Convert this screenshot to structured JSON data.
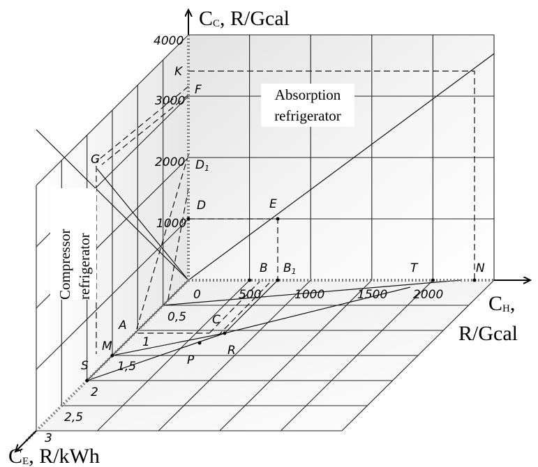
{
  "axes": {
    "cc_symbol": "C",
    "cc_sub": "C",
    "cc_unit": ", R/Gcal",
    "ch_symbol": "C",
    "ch_sub": "H",
    "ch_unit_line1": ",",
    "ch_unit_line2": "R/Gcal",
    "ce_symbol": "C",
    "ce_sub": "E",
    "ce_unit": ", R/kWh"
  },
  "ticks": {
    "cc": [
      "1000",
      "2000",
      "3000",
      "4000"
    ],
    "ch": [
      "500",
      "1000",
      "1500",
      "2000"
    ],
    "ce": [
      "0,5",
      "1",
      "1,5",
      "2",
      "2,5",
      "3"
    ],
    "origin": "0"
  },
  "points": {
    "K": "K",
    "F": "F",
    "D1": "D",
    "D1_sub": "1",
    "D": "D",
    "E": "E",
    "G": "G",
    "B": "B",
    "B1": "B",
    "B1_sub": "1",
    "T": "T",
    "N": "N",
    "A": "A",
    "C": "C",
    "M": "M",
    "S": "S",
    "P": "P",
    "R": "R"
  },
  "regions": {
    "absorption_line1": "Absorption",
    "absorption_line2": "refrigerator",
    "compressor_line1": "Compressor",
    "compressor_line2": "refrigerator"
  }
}
